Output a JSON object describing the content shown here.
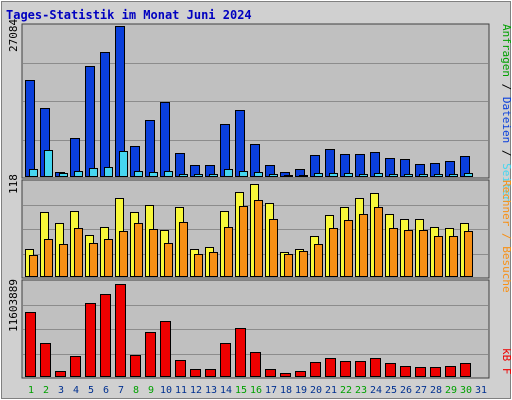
{
  "title": "Tages-Statistik im Monat Juni 2024",
  "colors": {
    "background": "#d0d0d0",
    "panel": "#c0c0c0",
    "grid": "#8c8c8c",
    "border": "#404040",
    "title": "#0000c0",
    "anfragen": "#0a3fdb",
    "dateien": "#46d6f0",
    "rechner": "#f8f83a",
    "besuche": "#f79016",
    "kb": "#ee0000",
    "weekend_label": "#00a000",
    "weekday_label": "#003090"
  },
  "legend_right": {
    "top": [
      "Anfragen",
      " / ",
      "Dateien",
      " / ",
      "Seiten"
    ],
    "middle": "Rechner / Besuche",
    "bottom": "kB F"
  },
  "y_axis_labels": {
    "top": "27084",
    "middle": "118",
    "bottom": "11603889"
  },
  "chart_data": [
    {
      "type": "bar",
      "panel": "requests",
      "categories": [
        "1",
        "2",
        "3",
        "4",
        "5",
        "6",
        "7",
        "8",
        "9",
        "10",
        "11",
        "12",
        "13",
        "14",
        "15",
        "16",
        "17",
        "18",
        "19",
        "20",
        "21",
        "22",
        "23",
        "24",
        "25",
        "26",
        "27",
        "28",
        "29",
        "30",
        "31"
      ],
      "ylim": [
        0,
        27084
      ],
      "series": [
        {
          "name": "Anfragen",
          "values": [
            17300,
            12200,
            800,
            6900,
            19900,
            22400,
            27084,
            5500,
            10100,
            13300,
            4200,
            1900,
            1900,
            9400,
            11900,
            5700,
            1900,
            800,
            1300,
            3800,
            4900,
            3900,
            3900,
            4400,
            3300,
            3000,
            2200,
            2400,
            2700,
            3700,
            0
          ]
        },
        {
          "name": "Dateien",
          "values": [
            1200,
            4700,
            500,
            900,
            1500,
            1600,
            4600,
            900,
            800,
            900,
            400,
            400,
            400,
            1200,
            900,
            800,
            300,
            200,
            200,
            500,
            500,
            500,
            400,
            500,
            400,
            300,
            300,
            300,
            300,
            500,
            0
          ]
        }
      ]
    },
    {
      "type": "bar",
      "panel": "visits",
      "categories": [
        "1",
        "2",
        "3",
        "4",
        "5",
        "6",
        "7",
        "8",
        "9",
        "10",
        "11",
        "12",
        "13",
        "14",
        "15",
        "16",
        "17",
        "18",
        "19",
        "20",
        "21",
        "22",
        "23",
        "24",
        "25",
        "26",
        "27",
        "28",
        "29",
        "30",
        "31"
      ],
      "ylim": [
        0,
        118
      ],
      "series": [
        {
          "name": "Rechner",
          "values": [
            34,
            80,
            66,
            82,
            52,
            62,
            98,
            80,
            89,
            58,
            87,
            34,
            36,
            81,
            106,
            115,
            92,
            30,
            34,
            50,
            76,
            87,
            98,
            104,
            78,
            72,
            72,
            62,
            60,
            66,
            0
          ]
        },
        {
          "name": "Besuche",
          "values": [
            26,
            46,
            40,
            60,
            42,
            46,
            56,
            66,
            59,
            42,
            68,
            28,
            30,
            61,
            88,
            95,
            72,
            28,
            32,
            40,
            60,
            70,
            78,
            86,
            60,
            58,
            58,
            50,
            50,
            56,
            0
          ]
        }
      ]
    },
    {
      "type": "bar",
      "panel": "bytes",
      "categories": [
        "1",
        "2",
        "3",
        "4",
        "5",
        "6",
        "7",
        "8",
        "9",
        "10",
        "11",
        "12",
        "13",
        "14",
        "15",
        "16",
        "17",
        "18",
        "19",
        "20",
        "21",
        "22",
        "23",
        "24",
        "25",
        "26",
        "27",
        "28",
        "29",
        "30",
        "31"
      ],
      "ylim": [
        0,
        11603889
      ],
      "series": [
        {
          "name": "kB F",
          "values": [
            8100000,
            4100000,
            590000,
            2500000,
            9200000,
            10300000,
            11603889,
            2700000,
            5500000,
            7000000,
            1990000,
            830000,
            830000,
            4200000,
            6100000,
            2990000,
            830000,
            330000,
            590000,
            1800000,
            2300000,
            1900000,
            1900000,
            2300000,
            1700000,
            1300000,
            1100000,
            1100000,
            1200000,
            1600000,
            0
          ]
        }
      ]
    }
  ]
}
